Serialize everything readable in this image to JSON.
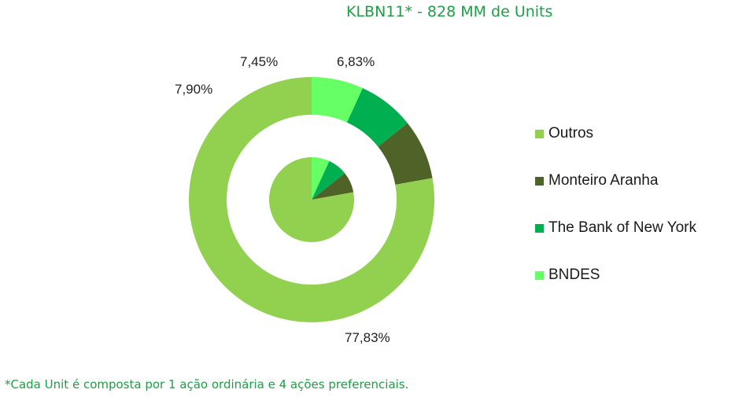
{
  "chart_data": {
    "type": "pie",
    "title": "KLBN11* - 828 MM de Units",
    "categories": [
      "Outros",
      "Monteiro Aranha",
      "The Bank of New York",
      "BNDES"
    ],
    "values": [
      77.83,
      7.9,
      7.45,
      6.83
    ],
    "labels": [
      "77,83%",
      "7,90%",
      "7,45%",
      "6,83%"
    ],
    "colors": [
      "#92d050",
      "#4f6228",
      "#00b050",
      "#66ff66"
    ],
    "legend_position": "right"
  },
  "footnote": "*Cada Unit é composta por 1 ação ordinária e 4 ações preferenciais."
}
